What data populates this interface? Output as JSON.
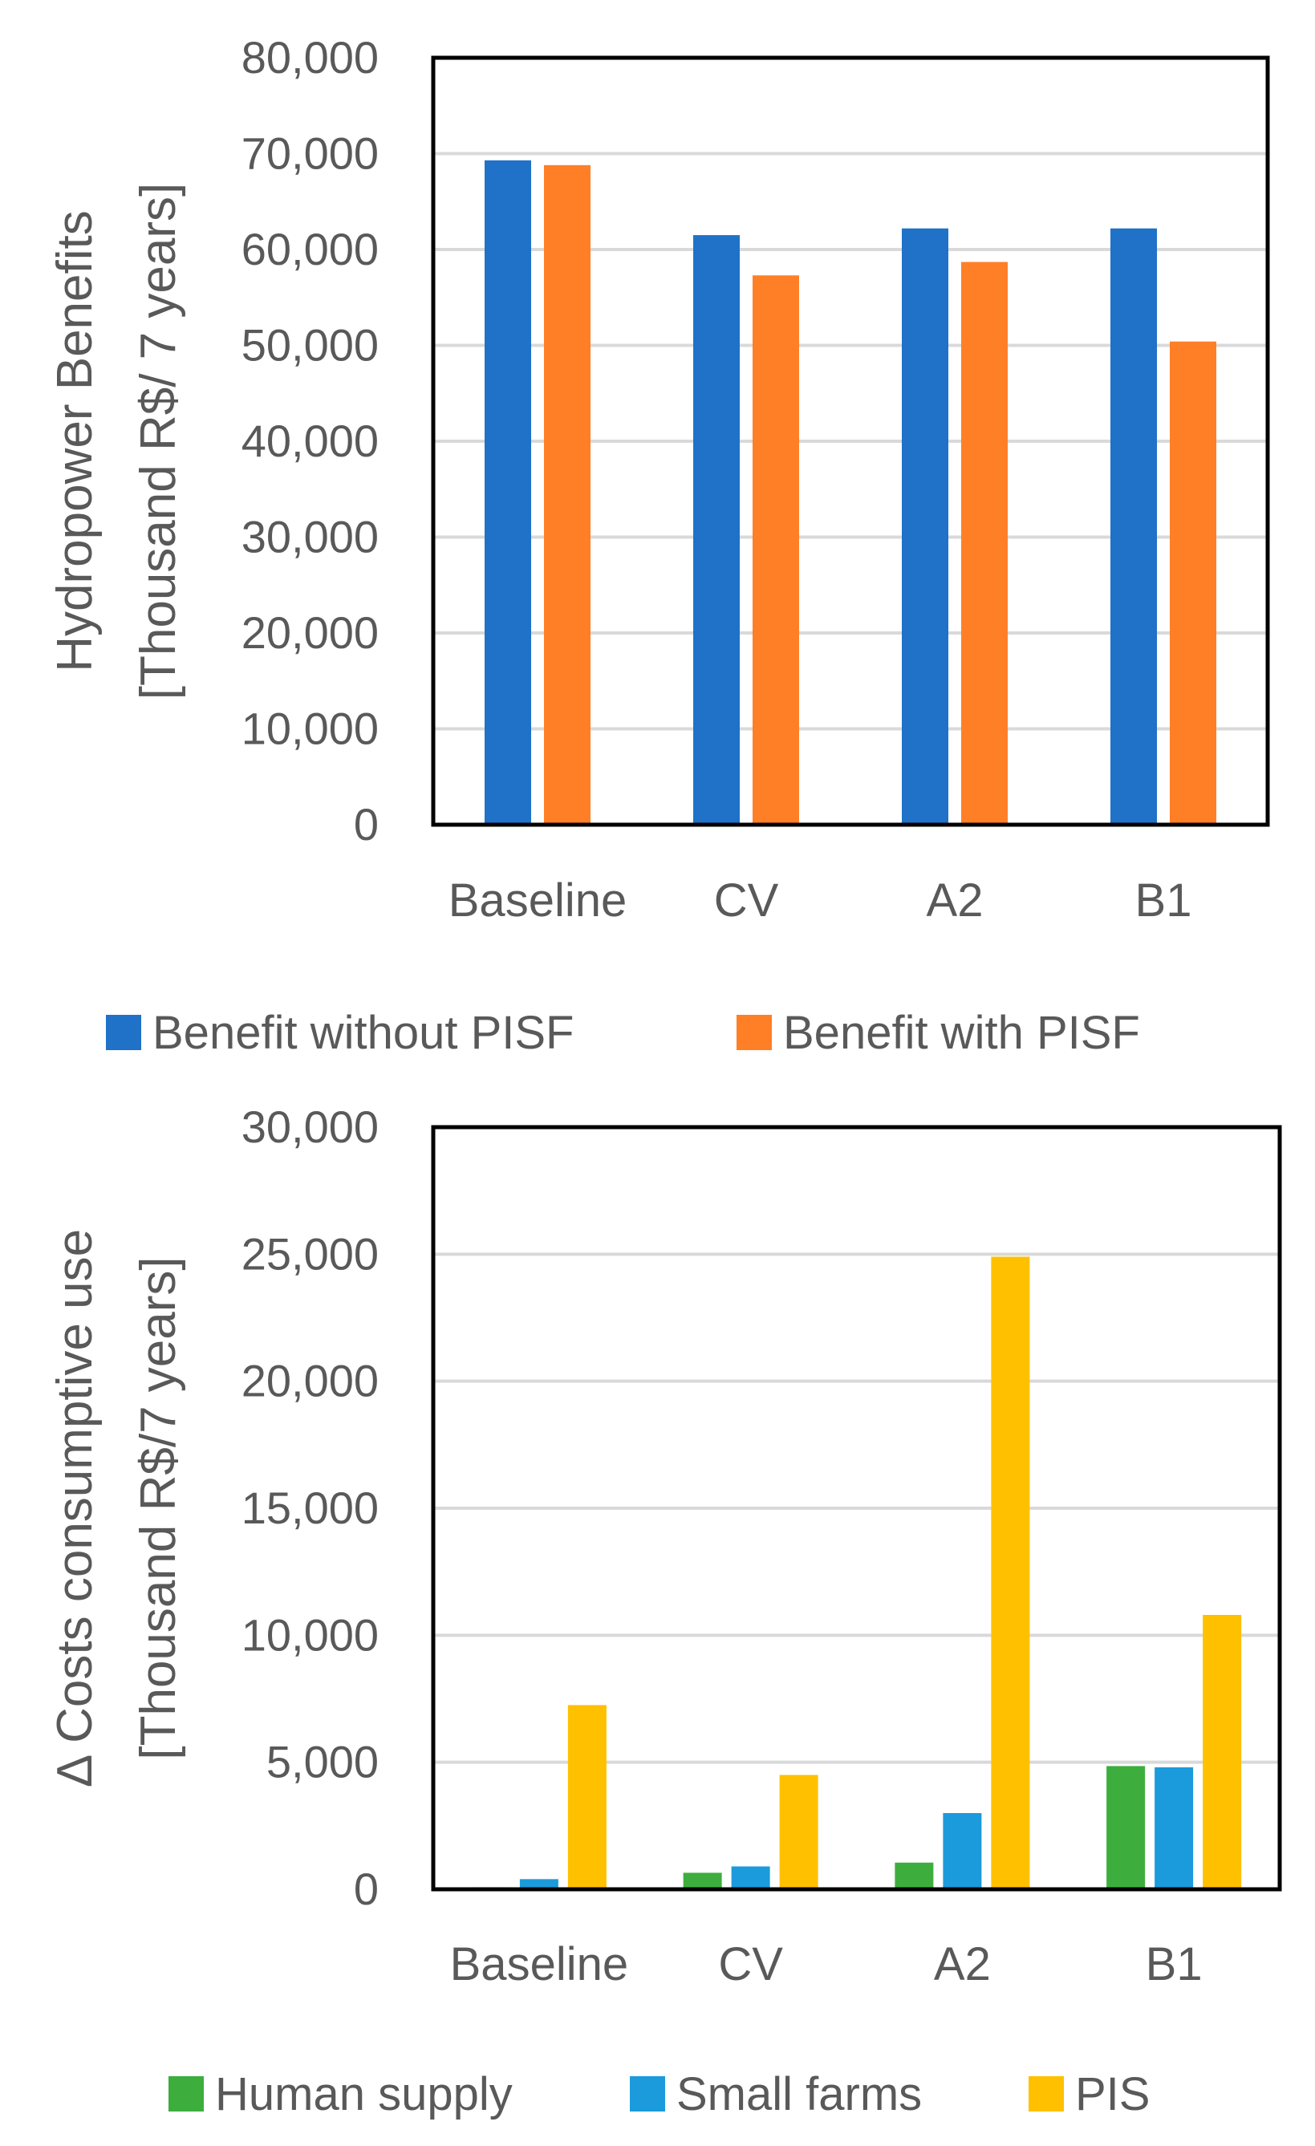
{
  "chart_data": [
    {
      "type": "bar",
      "categories": [
        "Baseline",
        "CV",
        "A2",
        "B1"
      ],
      "series": [
        {
          "name": "Benefit without PISF",
          "color": "#1F72C8",
          "values": [
            69300,
            61500,
            62200,
            62200
          ]
        },
        {
          "name": "Benefit with PISF",
          "color": "#FF7F27",
          "values": [
            68800,
            57300,
            58700,
            50400
          ]
        }
      ],
      "ylabel_line1": "Hydropower Benefits",
      "ylabel_line2": "[Thousand R$/ 7 years]",
      "ylim": [
        0,
        80000
      ],
      "yticks": [
        0,
        10000,
        20000,
        30000,
        40000,
        50000,
        60000,
        70000,
        80000
      ],
      "ytick_labels": [
        "0",
        "10,000",
        "20,000",
        "30,000",
        "40,000",
        "50,000",
        "60,000",
        "70,000",
        "80,000"
      ],
      "grid": true,
      "legend_position": "bottom"
    },
    {
      "type": "bar",
      "categories": [
        "Baseline",
        "CV",
        "A2",
        "B1"
      ],
      "series": [
        {
          "name": "Human supply",
          "color": "#3DAE3D",
          "values": [
            80,
            650,
            1050,
            4850
          ]
        },
        {
          "name": "Small farms",
          "color": "#1B9BDB",
          "values": [
            400,
            900,
            3000,
            4800
          ]
        },
        {
          "name": "PIS",
          "color": "#FFC000",
          "values": [
            7250,
            4500,
            24900,
            10800
          ]
        }
      ],
      "ylabel_line1": "Δ Costs consumptive use",
      "ylabel_line2": "[Thousand R$/7 years]",
      "ylim": [
        0,
        30000
      ],
      "yticks": [
        0,
        5000,
        10000,
        15000,
        20000,
        25000,
        30000
      ],
      "ytick_labels": [
        "0",
        "5,000",
        "10,000",
        "15,000",
        "20,000",
        "25,000",
        "30,000"
      ],
      "grid": true,
      "legend_position": "bottom"
    }
  ]
}
